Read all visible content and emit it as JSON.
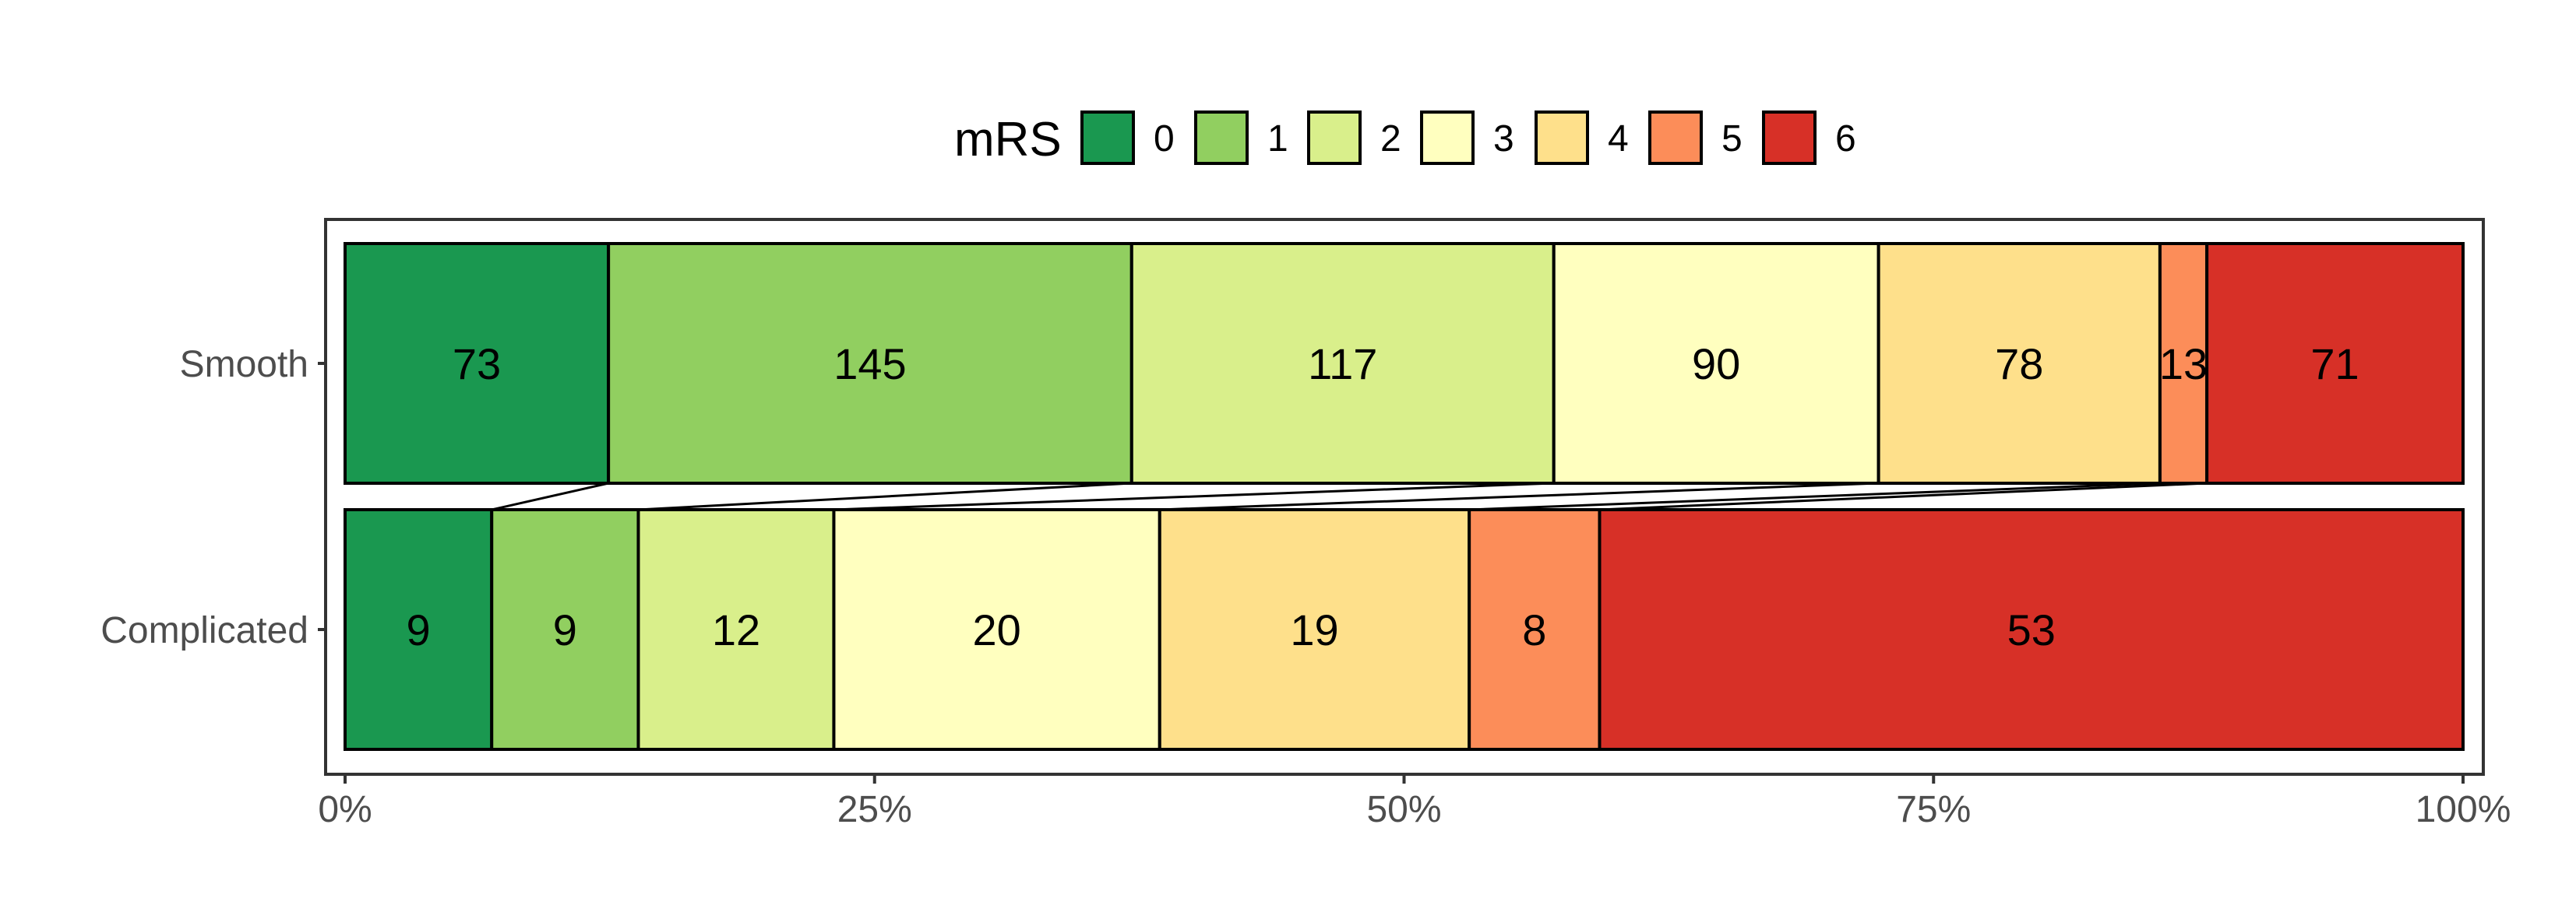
{
  "chart_data": {
    "type": "bar",
    "orientation": "horizontal",
    "stacking": "percent",
    "legend": {
      "title": "mRS",
      "placement": "top",
      "entries": [
        "0",
        "1",
        "2",
        "3",
        "4",
        "5",
        "6"
      ]
    },
    "colors": [
      "#1a9850",
      "#91cf60",
      "#d9ef8b",
      "#ffffbf",
      "#fee08b",
      "#fc8d59",
      "#d73027"
    ],
    "categories": [
      "Smooth",
      "Complicated"
    ],
    "series": [
      {
        "name": "0",
        "values": [
          73,
          9
        ]
      },
      {
        "name": "1",
        "values": [
          145,
          9
        ]
      },
      {
        "name": "2",
        "values": [
          117,
          12
        ]
      },
      {
        "name": "3",
        "values": [
          90,
          20
        ]
      },
      {
        "name": "4",
        "values": [
          78,
          19
        ]
      },
      {
        "name": "5",
        "values": [
          13,
          8
        ]
      },
      {
        "name": "6",
        "values": [
          71,
          53
        ]
      }
    ],
    "x_ticks": [
      "0%",
      "25%",
      "50%",
      "75%",
      "100%"
    ],
    "xlim": [
      0,
      100
    ],
    "grid": false,
    "connector_lines": true
  }
}
